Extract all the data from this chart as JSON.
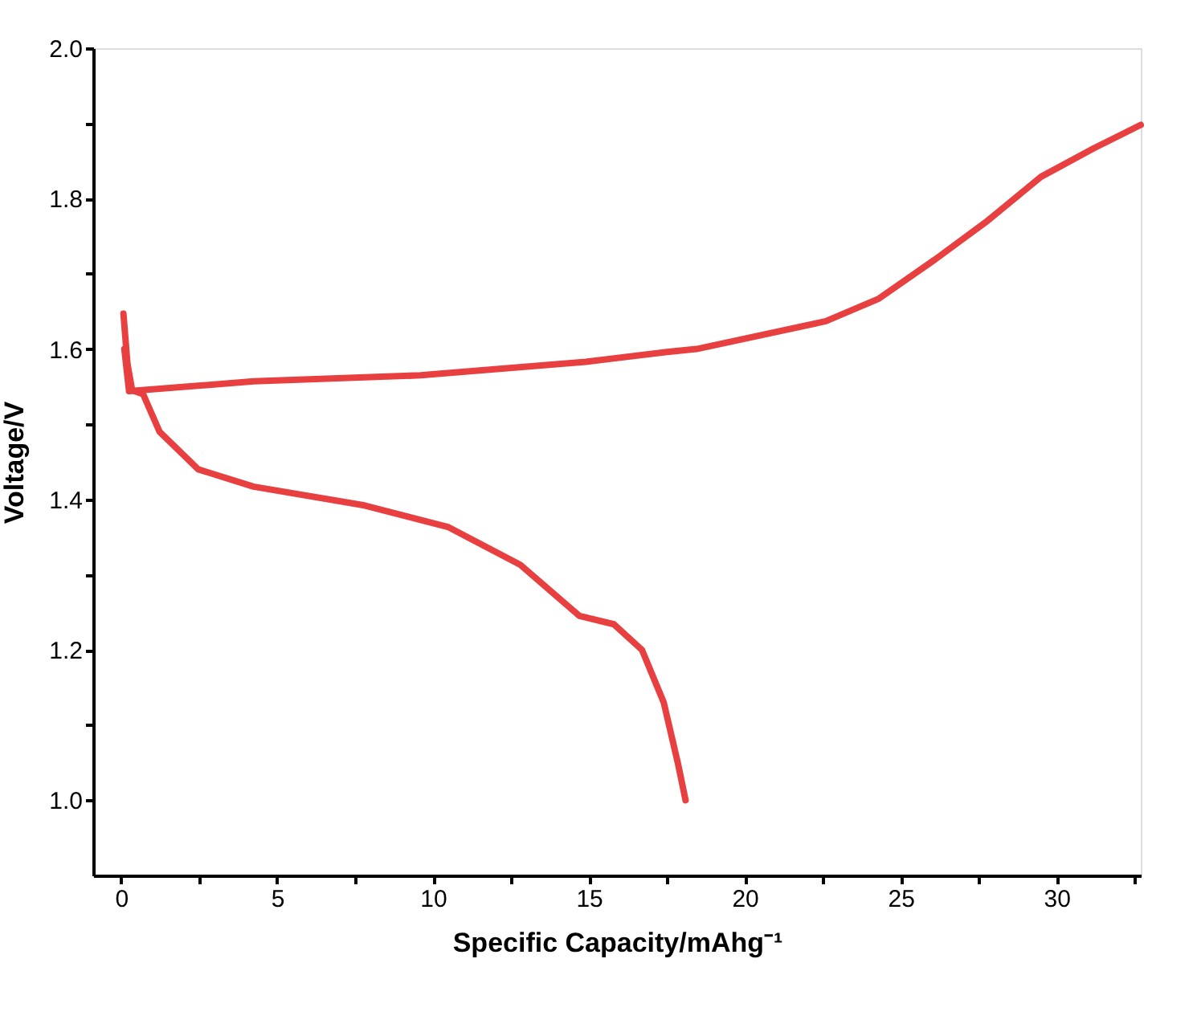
{
  "chart_data": {
    "type": "line",
    "xlabel": "Specific Capacity/mAhg⁻¹",
    "ylabel": "Voltage/V",
    "xlim": [
      -0.9,
      32.7
    ],
    "ylim": [
      0.9,
      2.0
    ],
    "xticks": [
      0,
      {
        "value": 2.5,
        "label": null
      },
      5,
      {
        "value": 7.5,
        "label": null
      },
      10,
      {
        "value": 12.5,
        "label": null
      },
      15,
      {
        "value": 17.5,
        "label": null
      },
      20,
      {
        "value": 22.5,
        "label": null
      },
      25,
      {
        "value": 27.5,
        "label": null
      },
      30,
      {
        "value": 32.5,
        "label": null
      }
    ],
    "yticks": [
      {
        "value": 1.0,
        "label": "1.0"
      },
      {
        "value": 1.1,
        "label": null
      },
      1.2,
      {
        "value": 1.3,
        "label": null
      },
      1.4,
      {
        "value": 1.5,
        "label": null
      },
      1.6,
      {
        "value": 1.7,
        "label": null
      },
      1.8,
      {
        "value": 1.9,
        "label": null
      },
      {
        "value": 2.0,
        "label": "2.0"
      }
    ],
    "grid": false,
    "marker": "none",
    "line_style": "solid",
    "series": [
      {
        "color": "#e84040",
        "x": [
          0.07,
          0.2,
          0.35,
          0.7,
          1.23,
          2.47,
          4.24,
          7.8,
          10.5,
          12.8,
          14.7,
          15.8,
          16.7,
          17.4,
          17.85,
          18.1
        ],
        "values": [
          1.647,
          1.58,
          1.545,
          1.54,
          1.49,
          1.44,
          1.417,
          1.392,
          1.363,
          1.313,
          1.245,
          1.234,
          1.2,
          1.13,
          1.05,
          1.0
        ]
      },
      {
        "color": "#e84040",
        "x": [
          0.1,
          0.25,
          4.25,
          9.6,
          14.9,
          17.5,
          18.45,
          22.6,
          24.3,
          26.1,
          27.8,
          29.5,
          31.2,
          32.7
        ],
        "values": [
          1.6,
          1.544,
          1.557,
          1.565,
          1.583,
          1.596,
          1.6,
          1.637,
          1.667,
          1.719,
          1.771,
          1.829,
          1.867,
          1.898
        ]
      }
    ]
  }
}
